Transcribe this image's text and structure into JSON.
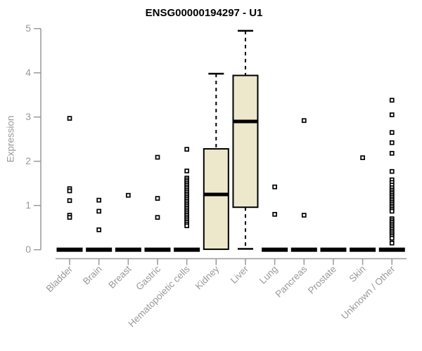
{
  "chart_data": {
    "type": "box",
    "title": "ENSG00000194297 - U1",
    "ylabel": "Expression",
    "xlabel": "",
    "ylim": [
      0,
      5
    ],
    "yticks": [
      0,
      1,
      2,
      3,
      4,
      5
    ],
    "grid": false,
    "legend": "none",
    "box_fill_color": "#EDE7CC",
    "box_line_color": "#000000",
    "axis_color": "#999999",
    "categories": [
      "Bladder",
      "Brain",
      "Breast",
      "Gastric",
      "Hematopoietic cells",
      "Kidney",
      "Liver",
      "Lung",
      "Pancreas",
      "Prostate",
      "Skin",
      "Unknown / Other"
    ],
    "boxes": [
      {
        "category": "Bladder",
        "whisker_low": 0,
        "q1": 0,
        "median": 0,
        "q3": 0,
        "whisker_high": 0,
        "outliers": [
          2.97,
          1.38,
          1.33,
          1.11,
          0.78,
          0.73
        ]
      },
      {
        "category": "Brain",
        "whisker_low": 0,
        "q1": 0,
        "median": 0,
        "q3": 0,
        "whisker_high": 0,
        "outliers": [
          1.12,
          0.87,
          0.45
        ]
      },
      {
        "category": "Breast",
        "whisker_low": 0,
        "q1": 0,
        "median": 0,
        "q3": 0,
        "whisker_high": 0,
        "outliers": [
          1.23
        ]
      },
      {
        "category": "Gastric",
        "whisker_low": 0,
        "q1": 0,
        "median": 0,
        "q3": 0,
        "whisker_high": 0,
        "outliers": [
          2.09,
          1.16,
          0.73
        ]
      },
      {
        "category": "Hematopoietic cells",
        "whisker_low": 0,
        "q1": 0,
        "median": 0,
        "q3": 0,
        "whisker_high": 0,
        "outliers": [
          2.27,
          1.78,
          1.62,
          1.58,
          1.54,
          1.5,
          1.46,
          1.42,
          1.38,
          1.34,
          1.3,
          1.26,
          1.22,
          1.18,
          1.14,
          1.1,
          1.06,
          1.02,
          0.98,
          0.94,
          0.9,
          0.86,
          0.82,
          0.78,
          0.74,
          0.7,
          0.66,
          0.62,
          0.58,
          0.54
        ]
      },
      {
        "category": "Kidney",
        "whisker_low": 0,
        "q1": 0.01,
        "median": 1.25,
        "q3": 2.28,
        "whisker_high": 3.98,
        "outliers": []
      },
      {
        "category": "Liver",
        "whisker_low": 0.02,
        "q1": 0.96,
        "median": 2.9,
        "q3": 3.94,
        "whisker_high": 4.95,
        "outliers": []
      },
      {
        "category": "Lung",
        "whisker_low": 0,
        "q1": 0,
        "median": 0,
        "q3": 0,
        "whisker_high": 0,
        "outliers": [
          1.42,
          0.8
        ]
      },
      {
        "category": "Pancreas",
        "whisker_low": 0,
        "q1": 0,
        "median": 0,
        "q3": 0,
        "whisker_high": 0,
        "outliers": [
          2.92,
          0.78
        ]
      },
      {
        "category": "Prostate",
        "whisker_low": 0,
        "q1": 0,
        "median": 0,
        "q3": 0,
        "whisker_high": 0,
        "outliers": []
      },
      {
        "category": "Skin",
        "whisker_low": 0,
        "q1": 0,
        "median": 0,
        "q3": 0,
        "whisker_high": 0,
        "outliers": [
          2.08
        ]
      },
      {
        "category": "Unknown / Other",
        "whisker_low": 0,
        "q1": 0,
        "median": 0,
        "q3": 0,
        "whisker_high": 0,
        "outliers": [
          3.38,
          3.05,
          2.65,
          2.42,
          2.18,
          1.77,
          1.58,
          1.52,
          1.46,
          1.4,
          1.35,
          1.31,
          1.27,
          1.23,
          1.19,
          1.15,
          1.11,
          1.07,
          1.03,
          0.99,
          0.95,
          0.91,
          0.87,
          0.7,
          0.66,
          0.62,
          0.58,
          0.54,
          0.5,
          0.46,
          0.42,
          0.38,
          0.34,
          0.3,
          0.26,
          0.15
        ]
      }
    ]
  }
}
